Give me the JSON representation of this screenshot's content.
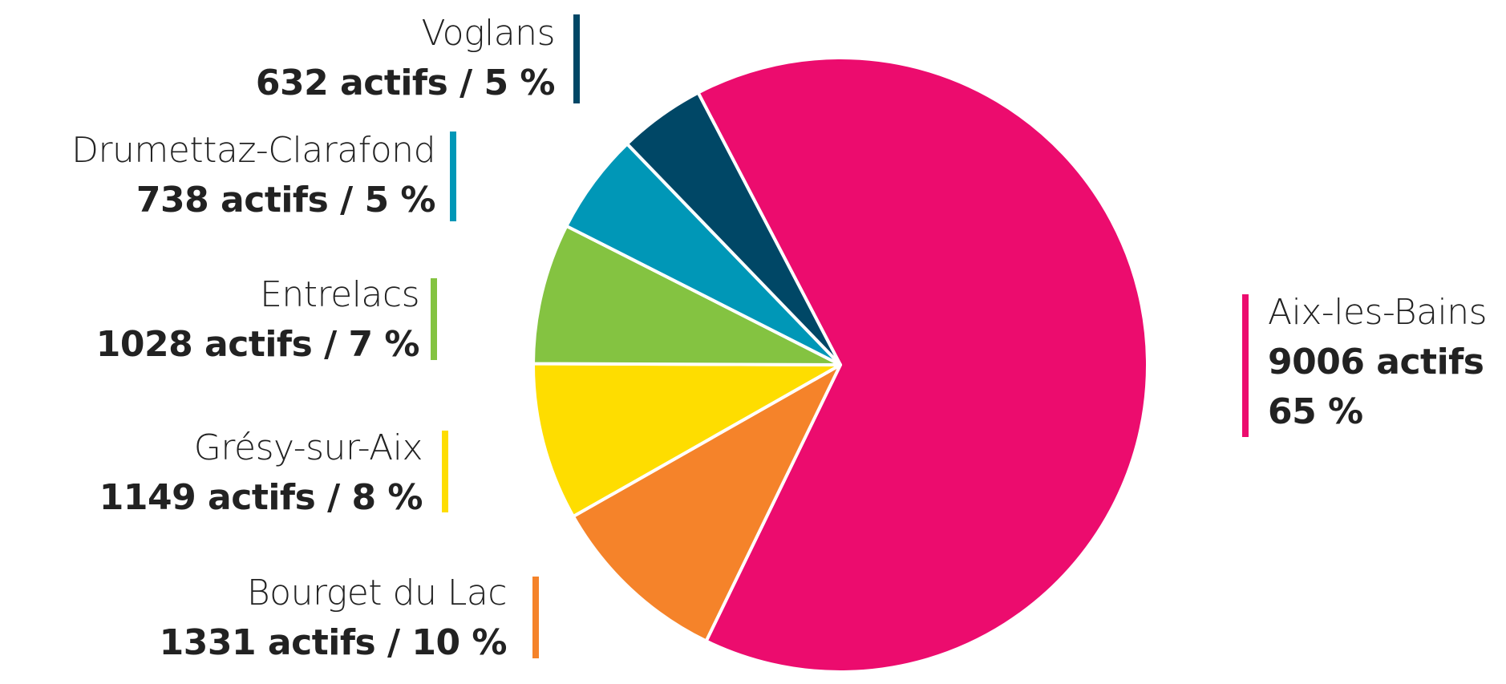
{
  "chart_data": {
    "type": "pie",
    "categories": [
      "Aix-les-Bains",
      "Bourget du Lac",
      "Grésy-sur-Aix",
      "Entrelacs",
      "Drumettaz-Clarafond",
      "Voglans"
    ],
    "values": [
      9006,
      1331,
      1149,
      1028,
      738,
      632
    ],
    "value_labels": [
      "9006 actifs\n65 %",
      "1331 actifs / 10 %",
      "1149 actifs / 8 %",
      "1028 actifs / 7 %",
      "738 actifs / 5 %",
      "632 actifs / 5 %"
    ],
    "colors": [
      "#ec0c6e",
      "#f5832a",
      "#fedd00",
      "#84c341",
      "#0097b7",
      "#004766"
    ]
  }
}
